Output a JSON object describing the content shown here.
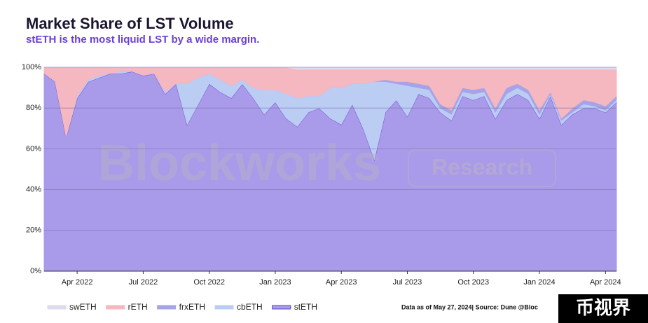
{
  "chart_data": {
    "type": "stacked-area",
    "title": "Market Share of LST Volume",
    "subtitle": "stETH is the most liquid LST by a wide margin.",
    "watermark": [
      "Blockworks",
      "Research"
    ],
    "note": "Data as of May 27, 2024| Source: Dune @Bloc",
    "badge": "币视界",
    "categories": [
      null,
      null,
      null,
      "Apr 2022",
      null,
      null,
      null,
      null,
      null,
      "Jul 2022",
      null,
      null,
      null,
      null,
      null,
      "Oct 2022",
      null,
      null,
      null,
      null,
      null,
      "Jan 2023",
      null,
      null,
      null,
      null,
      null,
      "Apr 2023",
      null,
      null,
      null,
      null,
      null,
      "Jul 2023",
      null,
      null,
      null,
      null,
      null,
      "Oct 2023",
      null,
      null,
      null,
      null,
      null,
      "Jan 2024",
      null,
      null,
      null,
      null,
      null,
      "Apr 2024",
      null
    ],
    "series": [
      {
        "name": "stETH",
        "color": "#a99be9",
        "line_color": "#5b3fd3",
        "values": [
          97,
          93,
          66,
          85,
          93,
          95,
          97,
          97,
          98,
          96,
          97,
          87,
          92,
          72,
          82,
          92,
          88,
          85,
          92,
          85,
          77,
          83,
          75,
          71,
          78,
          80,
          75,
          72,
          82,
          70,
          55,
          78,
          84,
          76,
          87,
          85,
          78,
          74,
          86,
          84,
          86,
          75,
          84,
          87,
          84,
          75,
          86,
          72,
          77,
          80,
          80,
          78,
          83
        ]
      },
      {
        "name": "cbETH",
        "color": "#bccdf4",
        "values": [
          0,
          0,
          0,
          1,
          1,
          1,
          0,
          1,
          0,
          0,
          0,
          1,
          0,
          20,
          13,
          5,
          6,
          6,
          2,
          5,
          12,
          6,
          12,
          14,
          8,
          6,
          15,
          18,
          10,
          22,
          38,
          15,
          8,
          15,
          3,
          4,
          2,
          3,
          2,
          3,
          2,
          3,
          3,
          3,
          3,
          2,
          1,
          2,
          1,
          2,
          1,
          1,
          1
        ]
      },
      {
        "name": "frxETH",
        "color": "#a7a3e8",
        "values": [
          0,
          0,
          0,
          0,
          0,
          0,
          0,
          0,
          0,
          0,
          0,
          0,
          0,
          0,
          0,
          0,
          0,
          0,
          0,
          0,
          0,
          0,
          0,
          0,
          0,
          0,
          0,
          0,
          0,
          0,
          0,
          1,
          1,
          2,
          2,
          2,
          2,
          2,
          2,
          2,
          2,
          2,
          3,
          2,
          2,
          2,
          1,
          1,
          2,
          2,
          2,
          2,
          2
        ]
      },
      {
        "name": "rETH",
        "color": "#f5b7c0",
        "values": [
          3,
          7,
          34,
          14,
          6,
          4,
          3,
          2,
          2,
          4,
          3,
          12,
          8,
          8,
          5,
          3,
          6,
          9,
          6,
          10,
          11,
          11,
          13,
          14,
          13,
          13,
          9,
          9,
          7,
          7,
          6,
          5,
          6,
          6,
          7,
          8,
          17,
          20,
          9,
          10,
          9,
          19,
          9,
          7,
          10,
          20,
          11,
          24,
          19,
          15,
          16,
          18,
          13
        ]
      },
      {
        "name": "swETH",
        "color": "#dddbeb",
        "values": [
          0,
          0,
          0,
          0,
          0,
          0,
          0,
          0,
          0,
          0,
          0,
          0,
          0,
          0,
          0,
          0,
          0,
          0,
          0,
          0,
          0,
          0,
          0,
          1,
          1,
          1,
          1,
          1,
          1,
          1,
          1,
          1,
          1,
          1,
          1,
          1,
          1,
          1,
          1,
          1,
          1,
          1,
          1,
          1,
          1,
          1,
          1,
          1,
          1,
          1,
          1,
          1,
          1
        ]
      }
    ],
    "ylim": [
      0,
      100
    ],
    "yticks": [
      {
        "value": 0,
        "label": "0%"
      },
      {
        "value": 20,
        "label": "20%"
      },
      {
        "value": 40,
        "label": "40%"
      },
      {
        "value": 60,
        "label": "60%"
      },
      {
        "value": 80,
        "label": "80%"
      },
      {
        "value": 100,
        "label": "100%"
      }
    ],
    "grid": true
  }
}
